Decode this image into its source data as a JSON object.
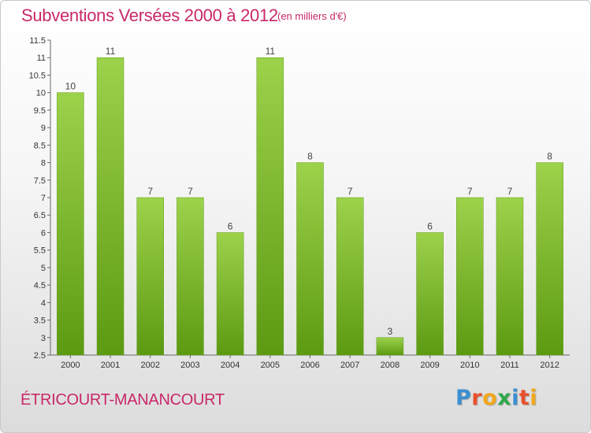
{
  "header": {
    "title": "Subventions Versées 2000 à 2012",
    "unit": "(en milliers d'€)"
  },
  "footer": {
    "commune": "ÉTRICOURT-MANANCOURT",
    "logo": {
      "letters": [
        "P",
        "r",
        "o",
        "x",
        "i",
        "t",
        "i"
      ],
      "colors": [
        "#3b8fd1",
        "#e8502c",
        "#f2a81c",
        "#2fa84a",
        "#3b8fd1",
        "#e8502c",
        "#f2a81c"
      ]
    }
  },
  "chart_data": {
    "type": "bar",
    "categories": [
      "2000",
      "2001",
      "2002",
      "2003",
      "2004",
      "2005",
      "2006",
      "2007",
      "2008",
      "2009",
      "2010",
      "2011",
      "2012"
    ],
    "values": [
      10,
      11,
      7,
      7,
      6,
      11,
      8,
      7,
      3,
      6,
      7,
      7,
      8
    ],
    "data_labels": [
      "10",
      "11",
      "7",
      "7",
      "6",
      "11",
      "8",
      "7",
      "3",
      "6",
      "7",
      "7",
      "8"
    ],
    "ylim": [
      2.5,
      11.5
    ],
    "yticks": [
      "2.5",
      "3",
      "3.5",
      "4",
      "4.5",
      "5",
      "5.5",
      "6",
      "6.5",
      "7",
      "7.5",
      "8",
      "8.5",
      "9",
      "9.5",
      "10",
      "10.5",
      "11",
      "11.5"
    ],
    "grid": false,
    "bar_color": "#7cbd2a"
  }
}
